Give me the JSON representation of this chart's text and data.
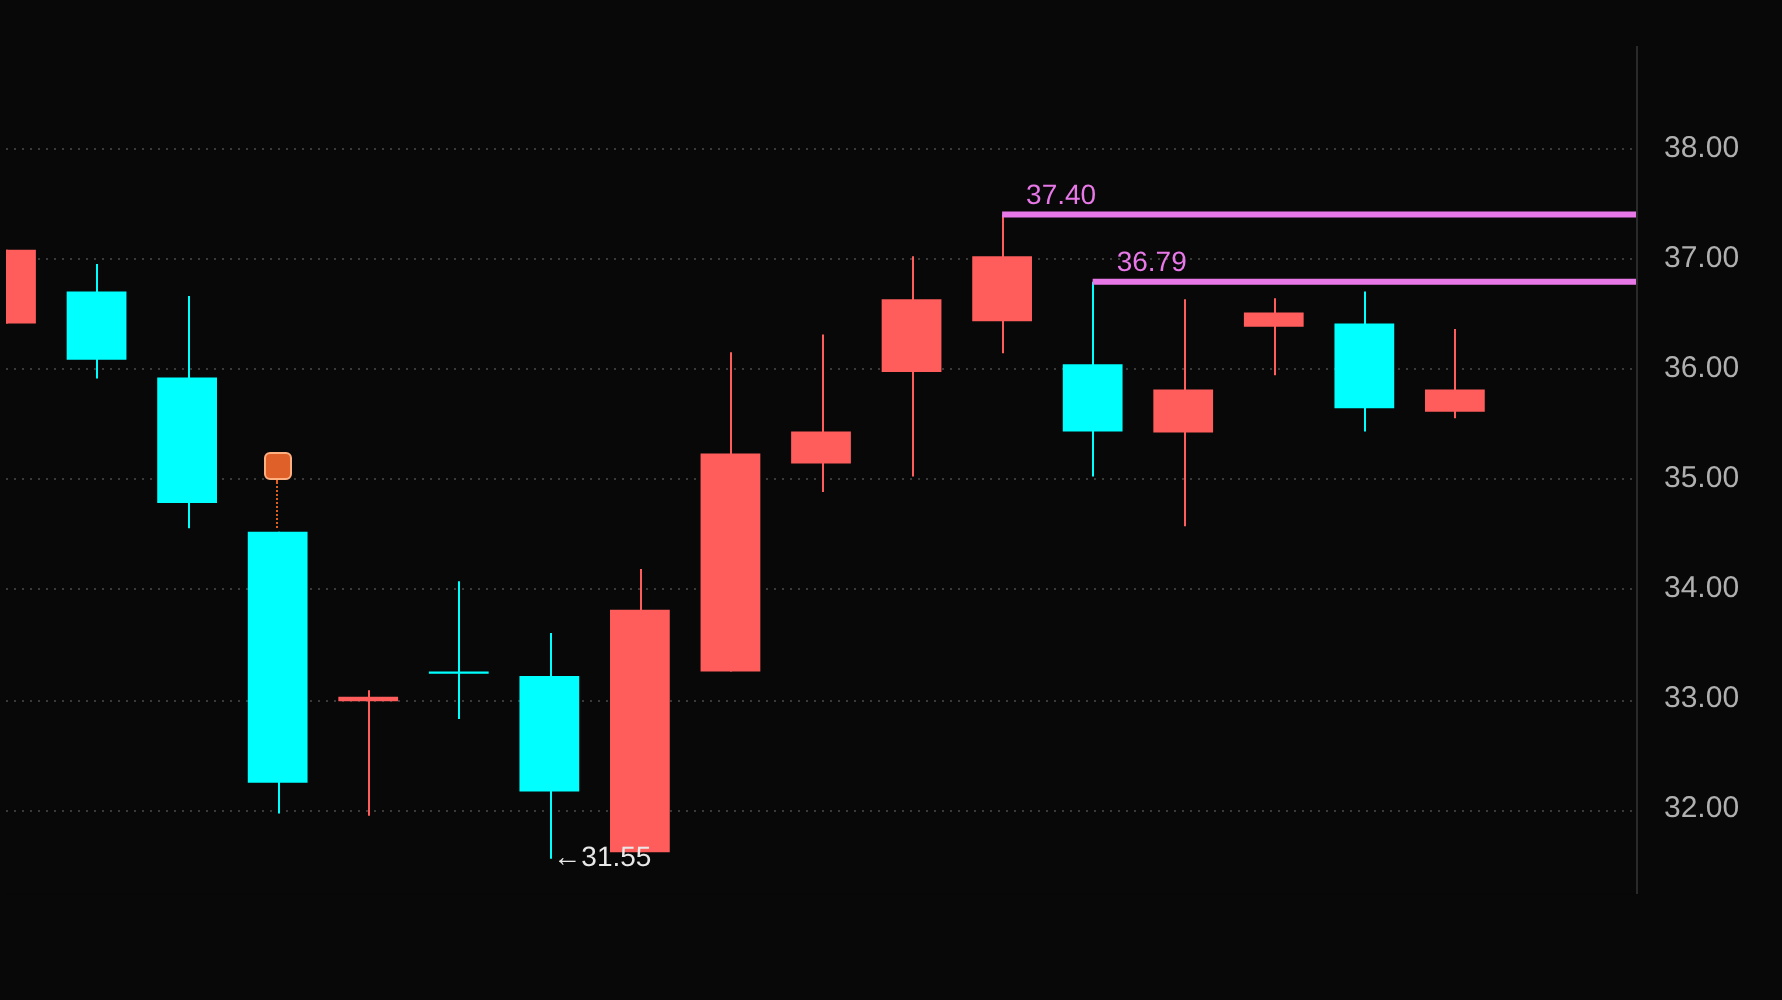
{
  "chart_data": {
    "type": "candlestick",
    "categories": [
      null,
      null,
      null,
      null,
      null,
      null,
      null,
      null,
      null,
      null,
      null,
      null,
      null,
      null,
      null,
      null,
      null,
      null,
      null
    ],
    "ohlc": [
      [
        36.41,
        37.08,
        36.41,
        37.08
      ],
      [
        36.7,
        36.95,
        35.91,
        36.08
      ],
      [
        35.92,
        36.66,
        34.55,
        34.78
      ],
      [
        34.52,
        34.52,
        31.96,
        32.24
      ],
      [
        32.98,
        33.08,
        31.94,
        33.02
      ],
      [
        33.25,
        34.07,
        32.82,
        33.23
      ],
      [
        33.21,
        33.6,
        31.55,
        32.16
      ],
      [
        31.61,
        34.18,
        31.61,
        33.81
      ],
      [
        33.25,
        36.15,
        33.25,
        35.23
      ],
      [
        35.14,
        36.31,
        34.88,
        35.43
      ],
      [
        35.97,
        37.02,
        35.02,
        36.63
      ],
      [
        36.43,
        37.4,
        36.14,
        37.02
      ],
      [
        36.04,
        36.79,
        35.02,
        35.43
      ],
      [
        35.42,
        36.63,
        34.57,
        35.81
      ],
      [
        36.38,
        36.64,
        35.94,
        36.51
      ],
      [
        36.41,
        36.7,
        35.43,
        35.64
      ],
      [
        35.61,
        36.36,
        35.55,
        35.81
      ],
      null,
      null
    ],
    "colors": [
      "#ff5c5c",
      "#00ffff",
      "#00ffff",
      "#00ffff",
      "#ff5c5c",
      "#00ffff",
      "#00ffff",
      "#ff5c5c",
      "#ff5c5c",
      "#ff5c5c",
      "#ff5c5c",
      "#ff5c5c",
      "#00ffff",
      "#ff5c5c",
      "#ff5c5c",
      "#00ffff",
      "#ff5c5c",
      null,
      null
    ],
    "ylim": [
      31.23,
      38.93
    ],
    "yticks": [
      {
        "value": 32,
        "label": "32.00"
      },
      {
        "value": 33,
        "label": "33.00"
      },
      {
        "value": 34,
        "label": "34.00"
      },
      {
        "value": 35,
        "label": "35.00"
      },
      {
        "value": 36,
        "label": "36.00"
      },
      {
        "value": 37,
        "label": "37.00"
      },
      {
        "value": 38,
        "label": "38.00"
      }
    ],
    "grid": "y",
    "ref_lines": [
      {
        "axis": "y",
        "value": 37.4,
        "label": "37.40",
        "color": "#e878e8"
      },
      {
        "axis": "y",
        "value": 36.79,
        "label": "36.79",
        "color": "#e878e8"
      }
    ],
    "annotations": [
      "←31.55"
    ]
  }
}
